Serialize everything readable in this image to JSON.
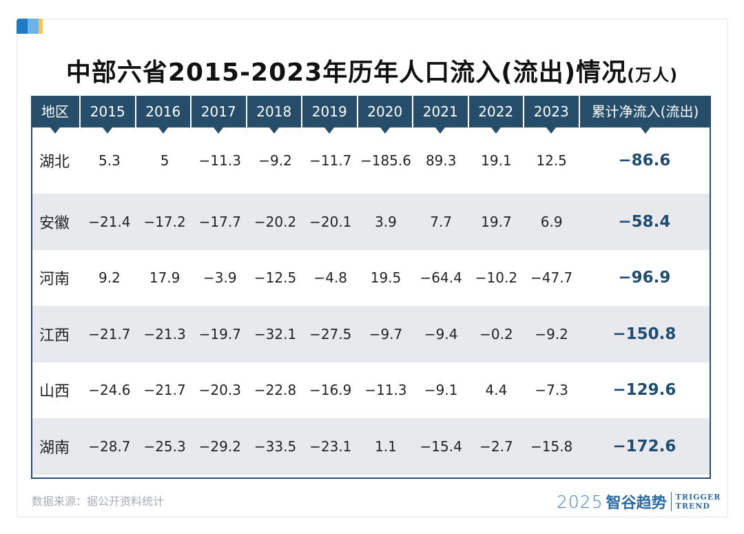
{
  "title": "中部六省2015-2023年历年人口流入(流出)情况",
  "title_unit": "(万人)",
  "headers": [
    "地区",
    "2015",
    "2016",
    "2017",
    "2018",
    "2019",
    "2020",
    "2021",
    "2022",
    "2023",
    "累计净流入(流出)"
  ],
  "rows": [
    {
      "region": "湖北",
      "values": [
        "5.3",
        "5",
        "−11.3",
        "−9.2",
        "−11.7",
        "−185.6",
        "89.3",
        "19.1",
        "12.5"
      ],
      "total": "−86.6"
    },
    {
      "region": "安徽",
      "values": [
        "−21.4",
        "−17.2",
        "−17.7",
        "−20.2",
        "−20.1",
        "3.9",
        "7.7",
        "19.7",
        "6.9"
      ],
      "total": "−58.4"
    },
    {
      "region": "河南",
      "values": [
        "9.2",
        "17.9",
        "−3.9",
        "−12.5",
        "−4.8",
        "19.5",
        "−64.4",
        "−10.2",
        "−47.7"
      ],
      "total": "−96.9"
    },
    {
      "region": "江西",
      "values": [
        "−21.7",
        "−21.3",
        "−19.7",
        "−32.1",
        "−27.5",
        "−9.7",
        "−9.4",
        "−0.2",
        "−9.2"
      ],
      "total": "−150.8"
    },
    {
      "region": "山西",
      "values": [
        "−24.6",
        "−21.7",
        "−20.3",
        "−22.8",
        "−16.9",
        "−11.3",
        "−9.1",
        "4.4",
        "−7.3"
      ],
      "total": "−129.6"
    },
    {
      "region": "湖南",
      "values": [
        "−28.7",
        "−25.3",
        "−29.2",
        "−33.5",
        "−23.1",
        "1.1",
        "−15.4",
        "−2.7",
        "−15.8"
      ],
      "total": "−172.6"
    }
  ],
  "source": "数据来源：据公开资料统计",
  "brand": {
    "year": "2025",
    "name": "智谷趋势",
    "en_line1": "TRIGGER",
    "en_line2": "TREND"
  },
  "colors": {
    "header_bg": "#264e6b",
    "alt_row": "#e7e9ec",
    "total_text": "#1f4d72",
    "brand": "#2b6aa4"
  }
}
